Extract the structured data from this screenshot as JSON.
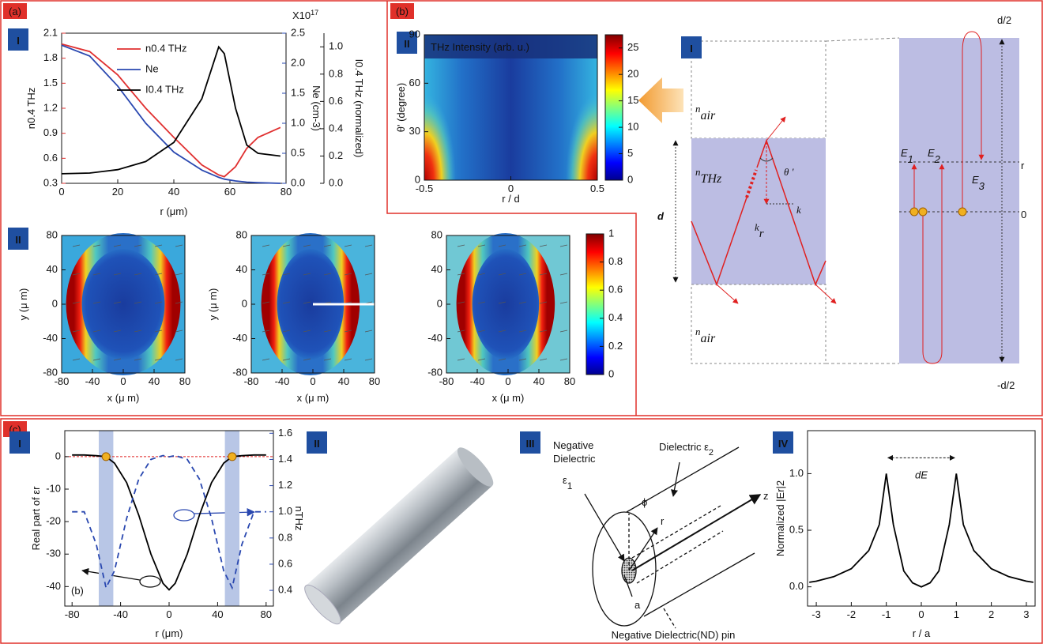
{
  "figure": {
    "panel_labels": [
      "(a)",
      "(b)",
      "(c)"
    ],
    "badges": [
      "I",
      "II",
      "II",
      "I",
      "I",
      "II",
      "III",
      "IV"
    ]
  },
  "chart_data": [
    {
      "type": "line",
      "x_label": "r (μm)",
      "y_label": "n0.4 THz",
      "y2_label": "Ne (cm-3)",
      "y3_label": "I0.4 THz (normalized)",
      "y2_exponent": {
        "main": "X10",
        "sup": "17"
      },
      "x": [
        0,
        10,
        20,
        30,
        40,
        50,
        56,
        58,
        62,
        66,
        70,
        78
      ],
      "series": [
        {
          "name": "n0.4 THz",
          "color": "#e03030",
          "values": [
            1.97,
            1.88,
            1.6,
            1.2,
            0.85,
            0.52,
            0.4,
            0.38,
            0.5,
            0.72,
            0.85,
            0.97
          ]
        },
        {
          "name": "Ne",
          "color": "#2a48b0",
          "axis": "y2",
          "values": [
            2.3,
            2.12,
            1.62,
            1.0,
            0.52,
            0.22,
            0.1,
            0.07,
            0.04,
            0.02,
            0.01,
            0.0
          ]
        },
        {
          "name": "I0.4 THz",
          "color": "#000000",
          "axis": "y3",
          "values": [
            0.07,
            0.075,
            0.1,
            0.16,
            0.3,
            0.62,
            1.0,
            0.95,
            0.55,
            0.28,
            0.22,
            0.2
          ]
        }
      ],
      "xlim": [
        0,
        80
      ],
      "xticks": [
        0,
        20,
        40,
        60,
        80
      ],
      "ylim": [
        0.3,
        2.1
      ],
      "yticks": [
        0.3,
        0.6,
        0.9,
        1.2,
        1.5,
        1.8,
        2.1
      ],
      "y2lim": [
        0,
        2.5
      ],
      "y2ticks": [
        {
          "value": 0,
          "label": "0.0"
        },
        0.5,
        {
          "value": 1,
          "label": "1.0"
        },
        1.5,
        {
          "value": 2,
          "label": "2.0"
        },
        2.5
      ],
      "y3lim": [
        0,
        1.1
      ],
      "y3ticks": [
        {
          "value": 0,
          "label": "0.0"
        },
        0.2,
        0.4,
        0.6,
        0.8,
        {
          "value": 1,
          "label": "1.0"
        }
      ]
    },
    {
      "type": "heatmap",
      "title": "THz Intensity (arb. u.)",
      "x_label": "r / d",
      "y_label": "θ' (degree)",
      "xlim": [
        -0.5,
        0.5
      ],
      "xticks": [
        -0.5,
        0,
        0.5
      ],
      "ylim": [
        0,
        90
      ],
      "yticks": [
        0,
        30,
        60,
        90
      ],
      "clim": [
        0,
        27.5
      ],
      "cticks": [
        0,
        5,
        10,
        15,
        20,
        25
      ],
      "colormap": "jet"
    },
    {
      "type": "heatmap",
      "panels": [
        {
          "x_label": "x (μ m)",
          "y_label": "y (μ m)"
        },
        {
          "x_label": "x (μ m)",
          "y_label": "y (μ m)"
        },
        {
          "x_label": "x (μ m)"
        }
      ],
      "xlim": [
        -80,
        80
      ],
      "xticks": [
        -80,
        -40,
        0,
        40,
        80
      ],
      "ylim": [
        -80,
        80
      ],
      "yticks": [
        -80,
        -40,
        0,
        40,
        80
      ],
      "clim": [
        0,
        1
      ],
      "cticks": [
        0,
        0.2,
        0.4,
        0.6,
        0.8,
        1
      ],
      "colormap": "jet"
    },
    {
      "type": "line",
      "x_label": "r (μm)",
      "y_label": "Real part of εr",
      "y2_label": "nTHz",
      "inset_label": "(b)",
      "x": [
        -80,
        -70,
        -60,
        -52,
        -45,
        -35,
        -25,
        -15,
        -5,
        0,
        5,
        15,
        25,
        35,
        45,
        52,
        60,
        70,
        80
      ],
      "series": [
        {
          "color": "#000000",
          "values": [
            0.5,
            0.5,
            0.3,
            0,
            -2,
            -8,
            -18,
            -30,
            -39,
            -41,
            -39,
            -30,
            -18,
            -8,
            -2,
            0,
            0.3,
            0.5,
            0.5
          ]
        },
        {
          "color": "#2a48b0",
          "axis": "y2",
          "dash": true,
          "values": [
            1.0,
            1.0,
            0.75,
            0.42,
            0.55,
            0.95,
            1.25,
            1.4,
            1.43,
            1.42,
            1.43,
            1.4,
            1.25,
            0.95,
            0.55,
            0.42,
            0.75,
            1.0,
            1.0
          ]
        }
      ],
      "xlim": [
        -86,
        86
      ],
      "xticks": [
        -80,
        -40,
        0,
        40,
        80
      ],
      "ylim": [
        -46,
        8
      ],
      "yticks": [
        0,
        -10,
        -20,
        -30,
        -40
      ],
      "y2lim": [
        0.28,
        1.62
      ],
      "y2ticks": [
        0.4,
        0.6,
        0.8,
        {
          "value": 1,
          "label": "1.0"
        },
        1.2,
        1.4,
        1.6
      ],
      "bands": [
        [
          -58,
          -46
        ],
        [
          46,
          58
        ]
      ],
      "crossings": [
        -52,
        52
      ],
      "reference_y": 0
    },
    {
      "type": "line",
      "x_label": "r / a",
      "y_label": "Normalized |Er|2",
      "annotation": {
        "text": "dE",
        "from": -1,
        "to": 1,
        "y": 1.14
      },
      "x": [
        -3.2,
        -3,
        -2.5,
        -2,
        -1.5,
        -1.2,
        -1,
        -0.8,
        -0.5,
        -0.25,
        0,
        0.25,
        0.5,
        0.8,
        1,
        1.2,
        1.5,
        2,
        2.5,
        3,
        3.2
      ],
      "series": [
        {
          "color": "#000000",
          "values": [
            0.04,
            0.05,
            0.09,
            0.16,
            0.32,
            0.55,
            1.0,
            0.55,
            0.14,
            0.035,
            0,
            0.035,
            0.14,
            0.55,
            1.0,
            0.55,
            0.32,
            0.16,
            0.09,
            0.05,
            0.04
          ]
        }
      ],
      "xlim": [
        -3.25,
        3.25
      ],
      "xticks": [
        -3,
        -2,
        -1,
        0,
        1,
        2,
        3
      ],
      "ylim": [
        -0.17,
        1.38
      ],
      "yticks": [
        {
          "value": 0,
          "label": "0.0"
        },
        0.5,
        {
          "value": 1,
          "label": "1.0"
        }
      ]
    }
  ],
  "diagram_b": {
    "n_air_top": {
      "main": "n",
      "sub": "air"
    },
    "n_thz": {
      "main": "n",
      "sub": "THz"
    },
    "n_air_bottom": {
      "main": "n",
      "sub": "air"
    },
    "d": "d",
    "theta": "θ '",
    "k_r": {
      "main": "k",
      "sub": "r"
    },
    "k": "k",
    "E1": {
      "main": "E",
      "sub": "1"
    },
    "E2": {
      "main": "E",
      "sub": "2"
    },
    "E3": {
      "main": "E",
      "sub": "3"
    },
    "d_half": "d/2",
    "r": "r",
    "zero": "0",
    "minus_d_half": "-d/2"
  },
  "diagram_c3": {
    "negative_dielectric": [
      "Negative",
      "Dielectric"
    ],
    "eps1": {
      "main": "ε",
      "sub": "1"
    },
    "dielectric": {
      "main": "Dielectric ε",
      "sub": "2"
    },
    "phi": "ϕ",
    "r": "r",
    "z": "z",
    "a": "a",
    "caption": "Negative Dielectric(ND) pin"
  }
}
